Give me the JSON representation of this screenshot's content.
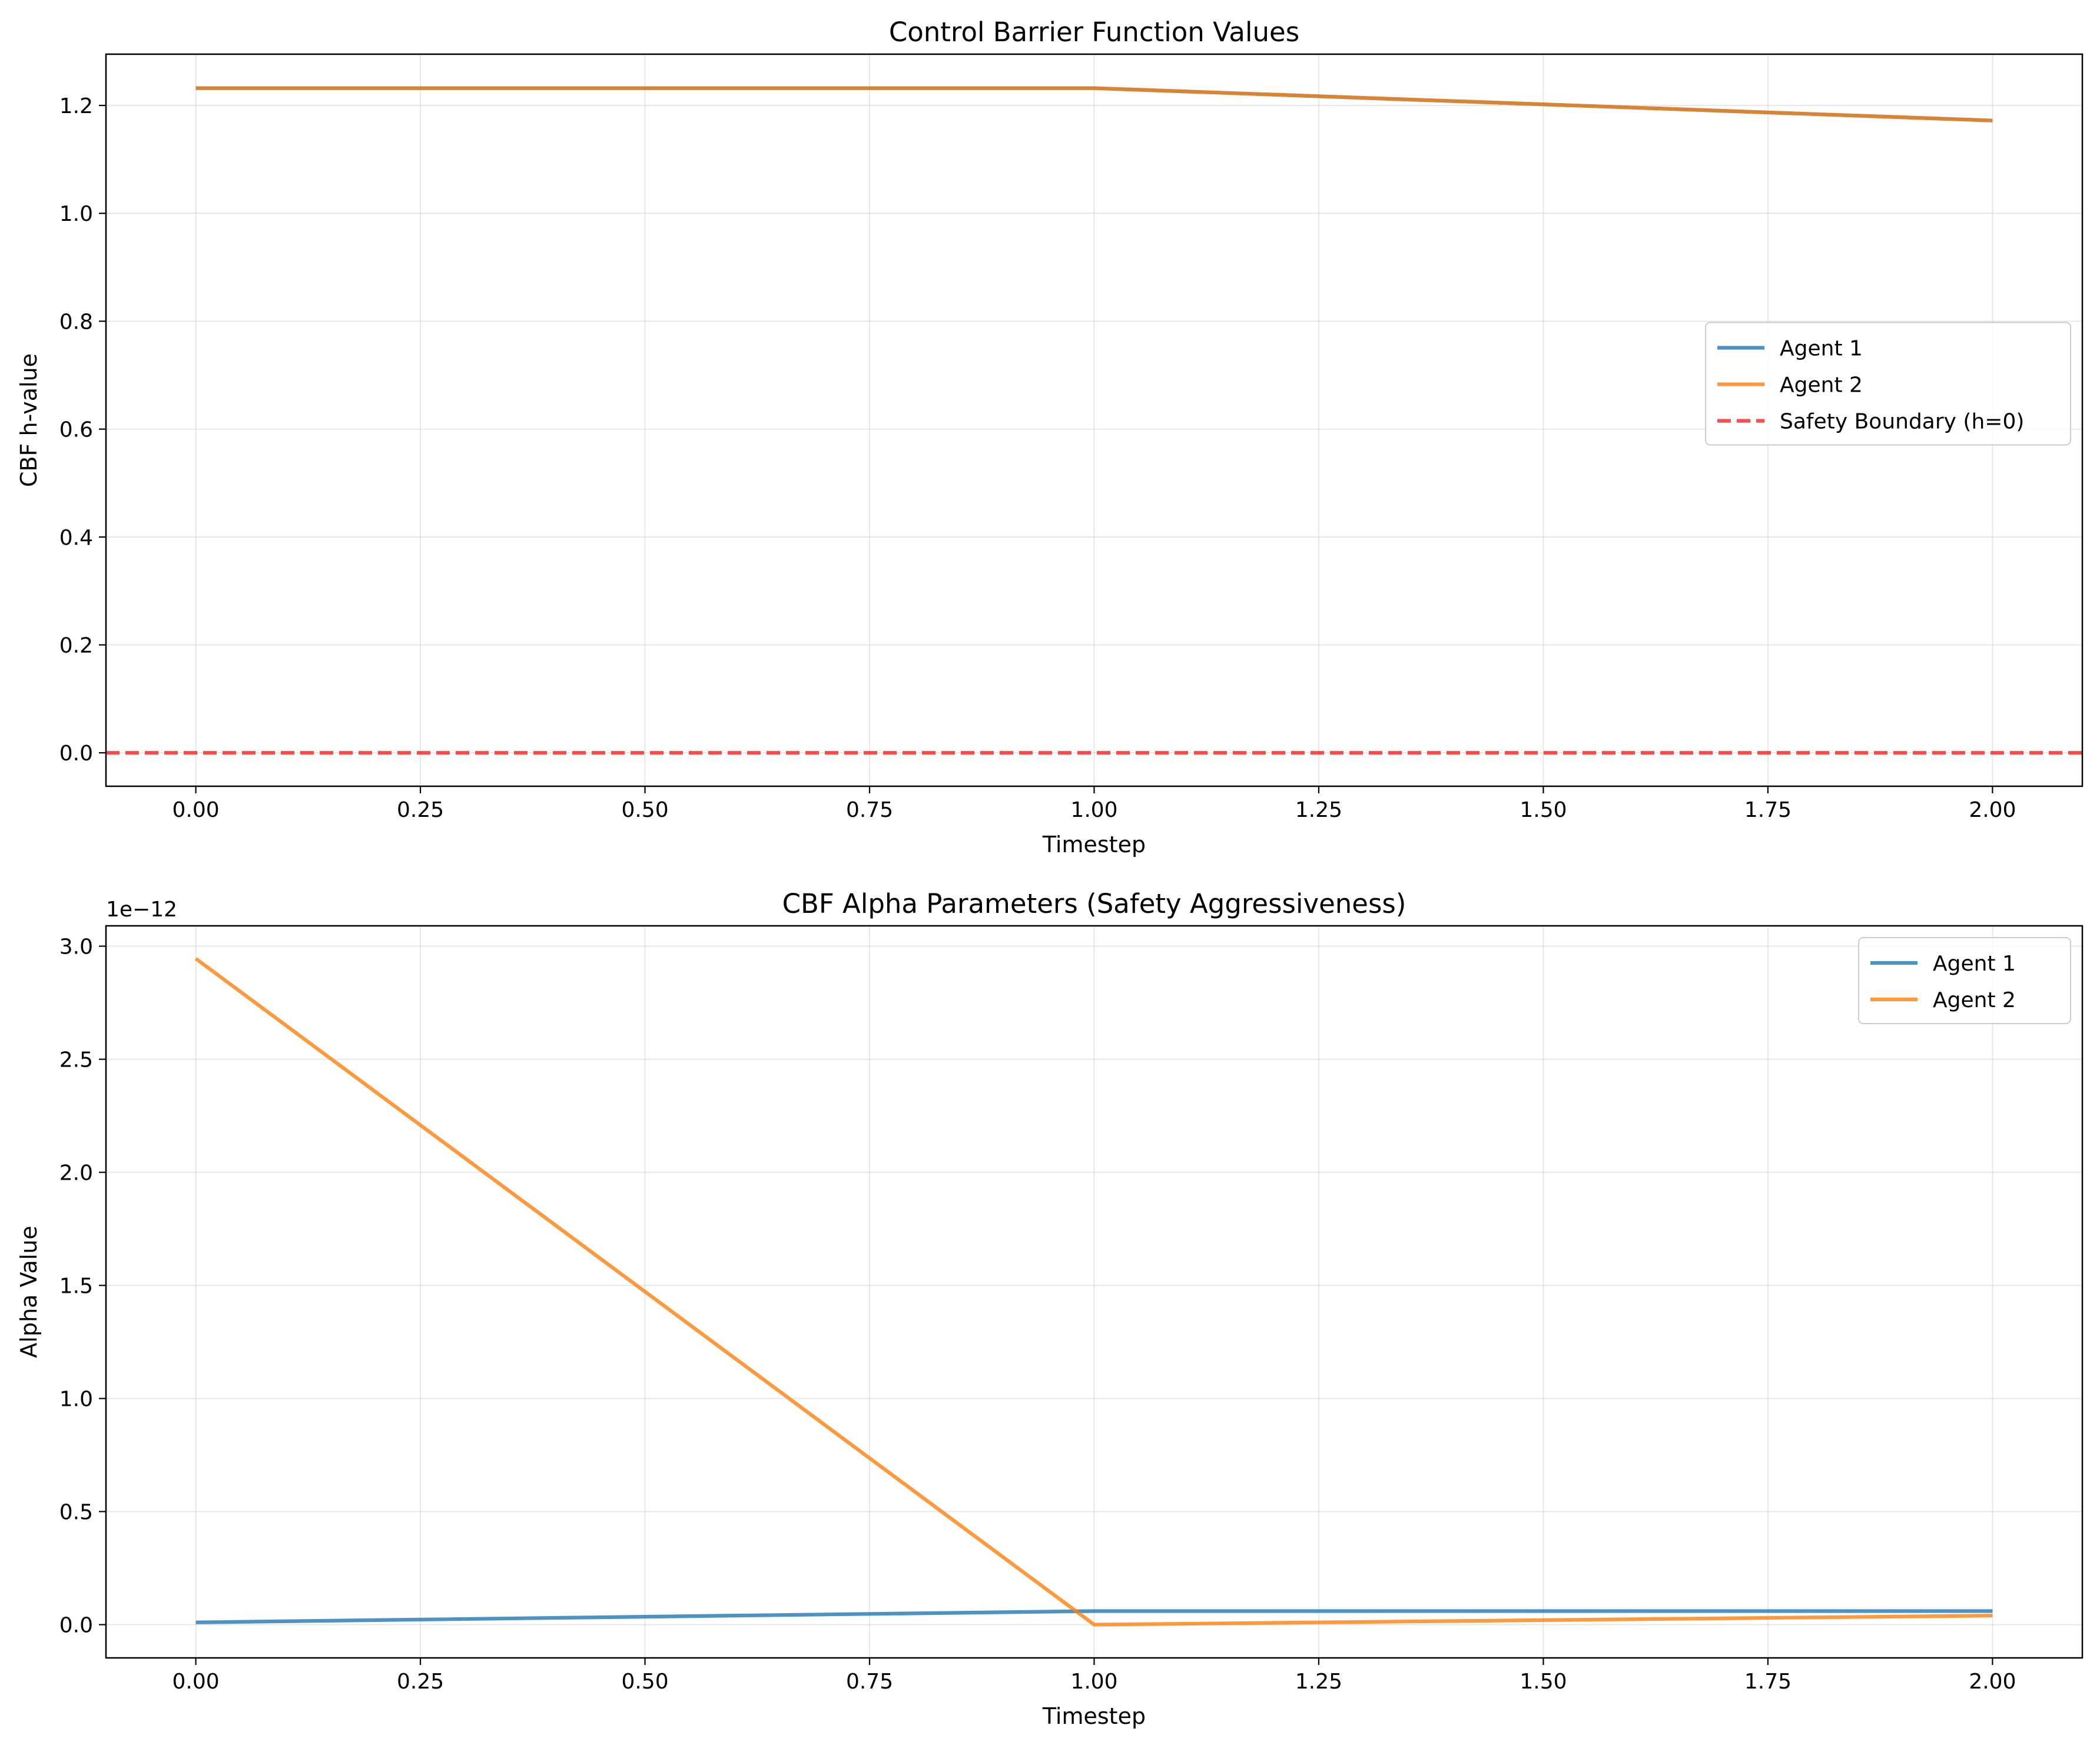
{
  "colors": {
    "agent1": "#1f77b4",
    "agent2": "#ff7f0e",
    "boundary": "#ff0000",
    "grid": "#b0b0b0"
  },
  "chart_data": [
    {
      "type": "line",
      "title": "Control Barrier Function Values",
      "xlabel": "Timestep",
      "ylabel": "CBF h-value",
      "xlim": [
        -0.1,
        2.1
      ],
      "ylim": [
        -0.062,
        1.295
      ],
      "xticks": [
        0.0,
        0.25,
        0.5,
        0.75,
        1.0,
        1.25,
        1.5,
        1.75,
        2.0
      ],
      "xtick_labels": [
        "0.00",
        "0.25",
        "0.50",
        "0.75",
        "1.00",
        "1.25",
        "1.50",
        "1.75",
        "2.00"
      ],
      "yticks": [
        0.0,
        0.2,
        0.4,
        0.6,
        0.8,
        1.0,
        1.2
      ],
      "ytick_labels": [
        "0.0",
        "0.2",
        "0.4",
        "0.6",
        "0.8",
        "1.0",
        "1.2"
      ],
      "grid": true,
      "legend_position": "center-right",
      "series": [
        {
          "name": "Agent 1",
          "color_key": "agent1",
          "style": "solid",
          "x": [
            0,
            1,
            2
          ],
          "y": [
            1.232,
            1.232,
            1.172
          ]
        },
        {
          "name": "Agent 2",
          "color_key": "agent2",
          "style": "solid",
          "x": [
            0,
            1,
            2
          ],
          "y": [
            1.232,
            1.232,
            1.172
          ]
        },
        {
          "name": "Safety Boundary (h=0)",
          "color_key": "boundary",
          "style": "dashed",
          "hline": 0
        }
      ]
    },
    {
      "type": "line",
      "title": "CBF Alpha Parameters (Safety Aggressiveness)",
      "xlabel": "Timestep",
      "ylabel": "Alpha Value",
      "offset_text": "1e−12",
      "xlim": [
        -0.1,
        2.1
      ],
      "ylim": [
        -0.147,
        3.09
      ],
      "xticks": [
        0.0,
        0.25,
        0.5,
        0.75,
        1.0,
        1.25,
        1.5,
        1.75,
        2.0
      ],
      "xtick_labels": [
        "0.00",
        "0.25",
        "0.50",
        "0.75",
        "1.00",
        "1.25",
        "1.50",
        "1.75",
        "2.00"
      ],
      "yticks": [
        0.0,
        0.5,
        1.0,
        1.5,
        2.0,
        2.5,
        3.0
      ],
      "ytick_labels": [
        "0.0",
        "0.5",
        "1.0",
        "1.5",
        "2.0",
        "2.5",
        "3.0"
      ],
      "grid": true,
      "legend_position": "top-right",
      "series": [
        {
          "name": "Agent 1",
          "color_key": "agent1",
          "style": "solid",
          "x": [
            0,
            1,
            2
          ],
          "y": [
            0.01,
            0.06,
            0.06
          ]
        },
        {
          "name": "Agent 2",
          "color_key": "agent2",
          "style": "solid",
          "x": [
            0,
            1,
            2
          ],
          "y": [
            2.945,
            0.0,
            0.04
          ]
        }
      ]
    }
  ]
}
